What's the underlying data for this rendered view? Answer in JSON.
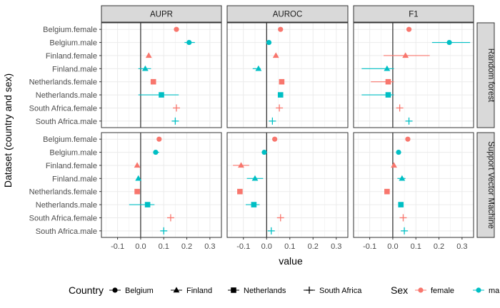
{
  "chart_data": {
    "type": "faceted-point-range",
    "xlabel": "value",
    "ylabel": "Dataset (country and sex)",
    "xlim": [
      -0.17,
      0.35
    ],
    "xticks": [
      -0.1,
      0.0,
      0.1,
      0.2,
      0.3
    ],
    "xtick_labels": [
      "-0.1",
      "0.0",
      "0.1",
      "0.2",
      "0.3"
    ],
    "vline_at": 0,
    "grid": true,
    "columns": [
      "AUPR",
      "AUROC",
      "F1"
    ],
    "rows": [
      "Random forest",
      "Support Vector Machine"
    ],
    "categories": [
      "Belgium.female",
      "Belgium.male",
      "Finland.female",
      "Finland.male",
      "Netherlands.female",
      "Netherlands.male",
      "South Africa.female",
      "South Africa.male"
    ],
    "series": [
      {
        "name": "Belgium.female",
        "country": "Belgium",
        "sex": "female",
        "random_forest": {
          "AUPR": [
            0.155,
            0.155,
            0.155
          ],
          "AUROC": [
            0.06,
            0.06,
            0.06
          ],
          "F1": [
            0.07,
            0.06,
            0.08
          ]
        },
        "svm": {
          "AUPR": [
            0.08,
            0.08,
            0.08
          ],
          "AUROC": [
            0.035,
            0.035,
            0.035
          ],
          "F1": [
            0.065,
            0.065,
            0.065
          ]
        }
      },
      {
        "name": "Belgium.male",
        "country": "Belgium",
        "sex": "male",
        "random_forest": {
          "AUPR": [
            0.21,
            0.19,
            0.235
          ],
          "AUROC": [
            0.01,
            0.01,
            0.01
          ],
          "F1": [
            0.245,
            0.17,
            0.335
          ]
        },
        "svm": {
          "AUPR": [
            0.065,
            0.055,
            0.08
          ],
          "AUROC": [
            -0.01,
            -0.01,
            -0.01
          ],
          "F1": [
            0.025,
            0.025,
            0.025
          ]
        }
      },
      {
        "name": "Finland.female",
        "country": "Finland",
        "sex": "female",
        "random_forest": {
          "AUPR": [
            0.035,
            0.035,
            0.035
          ],
          "AUROC": [
            0.04,
            0.04,
            0.04
          ],
          "F1": [
            0.055,
            -0.04,
            0.16
          ]
        },
        "svm": {
          "AUPR": [
            -0.015,
            -0.015,
            -0.015
          ],
          "AUROC": [
            -0.11,
            -0.145,
            -0.075
          ],
          "F1": [
            0.005,
            0.005,
            0.005
          ]
        }
      },
      {
        "name": "Finland.male",
        "country": "Finland",
        "sex": "male",
        "random_forest": {
          "AUPR": [
            0.02,
            -0.01,
            0.045
          ],
          "AUROC": [
            -0.035,
            -0.06,
            -0.025
          ],
          "F1": [
            -0.025,
            -0.135,
            0.005
          ]
        },
        "svm": {
          "AUPR": [
            -0.01,
            -0.01,
            -0.01
          ],
          "AUROC": [
            -0.05,
            -0.085,
            -0.015
          ],
          "F1": [
            0.04,
            0.02,
            0.055
          ]
        }
      },
      {
        "name": "Netherlands.female",
        "country": "Netherlands",
        "sex": "female",
        "random_forest": {
          "AUPR": [
            0.055,
            0.055,
            0.055
          ],
          "AUROC": [
            0.065,
            0.065,
            0.065
          ],
          "F1": [
            -0.02,
            -0.095,
            0.005
          ]
        },
        "svm": {
          "AUPR": [
            -0.015,
            -0.015,
            -0.015
          ],
          "AUROC": [
            -0.115,
            -0.115,
            -0.115
          ],
          "F1": [
            -0.025,
            -0.025,
            -0.025
          ]
        }
      },
      {
        "name": "Netherlands.male",
        "country": "Netherlands",
        "sex": "male",
        "random_forest": {
          "AUPR": [
            0.09,
            -0.01,
            0.165
          ],
          "AUROC": [
            0.06,
            0.06,
            0.06
          ],
          "F1": [
            -0.02,
            -0.135,
            0.005
          ]
        },
        "svm": {
          "AUPR": [
            0.03,
            -0.05,
            0.06
          ],
          "AUROC": [
            -0.055,
            -0.09,
            -0.03
          ],
          "F1": [
            0.035,
            0.035,
            0.035
          ]
        }
      },
      {
        "name": "South Africa.female",
        "country": "South Africa",
        "sex": "female",
        "random_forest": {
          "AUPR": [
            0.155,
            0.155,
            0.155
          ],
          "AUROC": [
            0.055,
            0.055,
            0.055
          ],
          "F1": [
            0.03,
            0.03,
            0.03
          ]
        },
        "svm": {
          "AUPR": [
            0.13,
            0.13,
            0.13
          ],
          "AUROC": [
            0.06,
            0.06,
            0.06
          ],
          "F1": [
            0.045,
            0.045,
            0.045
          ]
        }
      },
      {
        "name": "South Africa.male",
        "country": "South Africa",
        "sex": "male",
        "random_forest": {
          "AUPR": [
            0.15,
            0.15,
            0.15
          ],
          "AUROC": [
            0.025,
            0.025,
            0.025
          ],
          "F1": [
            0.07,
            0.07,
            0.07
          ]
        },
        "svm": {
          "AUPR": [
            0.1,
            0.1,
            0.1
          ],
          "AUROC": [
            0.02,
            0.02,
            0.02
          ],
          "F1": [
            0.05,
            0.05,
            0.05
          ]
        }
      }
    ],
    "legend": {
      "placement": "bottom",
      "country_title": "Country",
      "countries": [
        {
          "label": "Belgium",
          "shape": "circle"
        },
        {
          "label": "Finland",
          "shape": "triangle"
        },
        {
          "label": "Netherlands",
          "shape": "square"
        },
        {
          "label": "South Africa",
          "shape": "plus"
        }
      ],
      "sex_title": "Sex",
      "sexes": [
        {
          "label": "female",
          "color": "#F8766D"
        },
        {
          "label": "male",
          "color": "#00BFC4"
        }
      ]
    },
    "colors": {
      "strip_fill": "#D9D9D9",
      "grid": "#EBEBEB",
      "axis_text": "#4D4D4D",
      "frame": "#333333"
    }
  }
}
